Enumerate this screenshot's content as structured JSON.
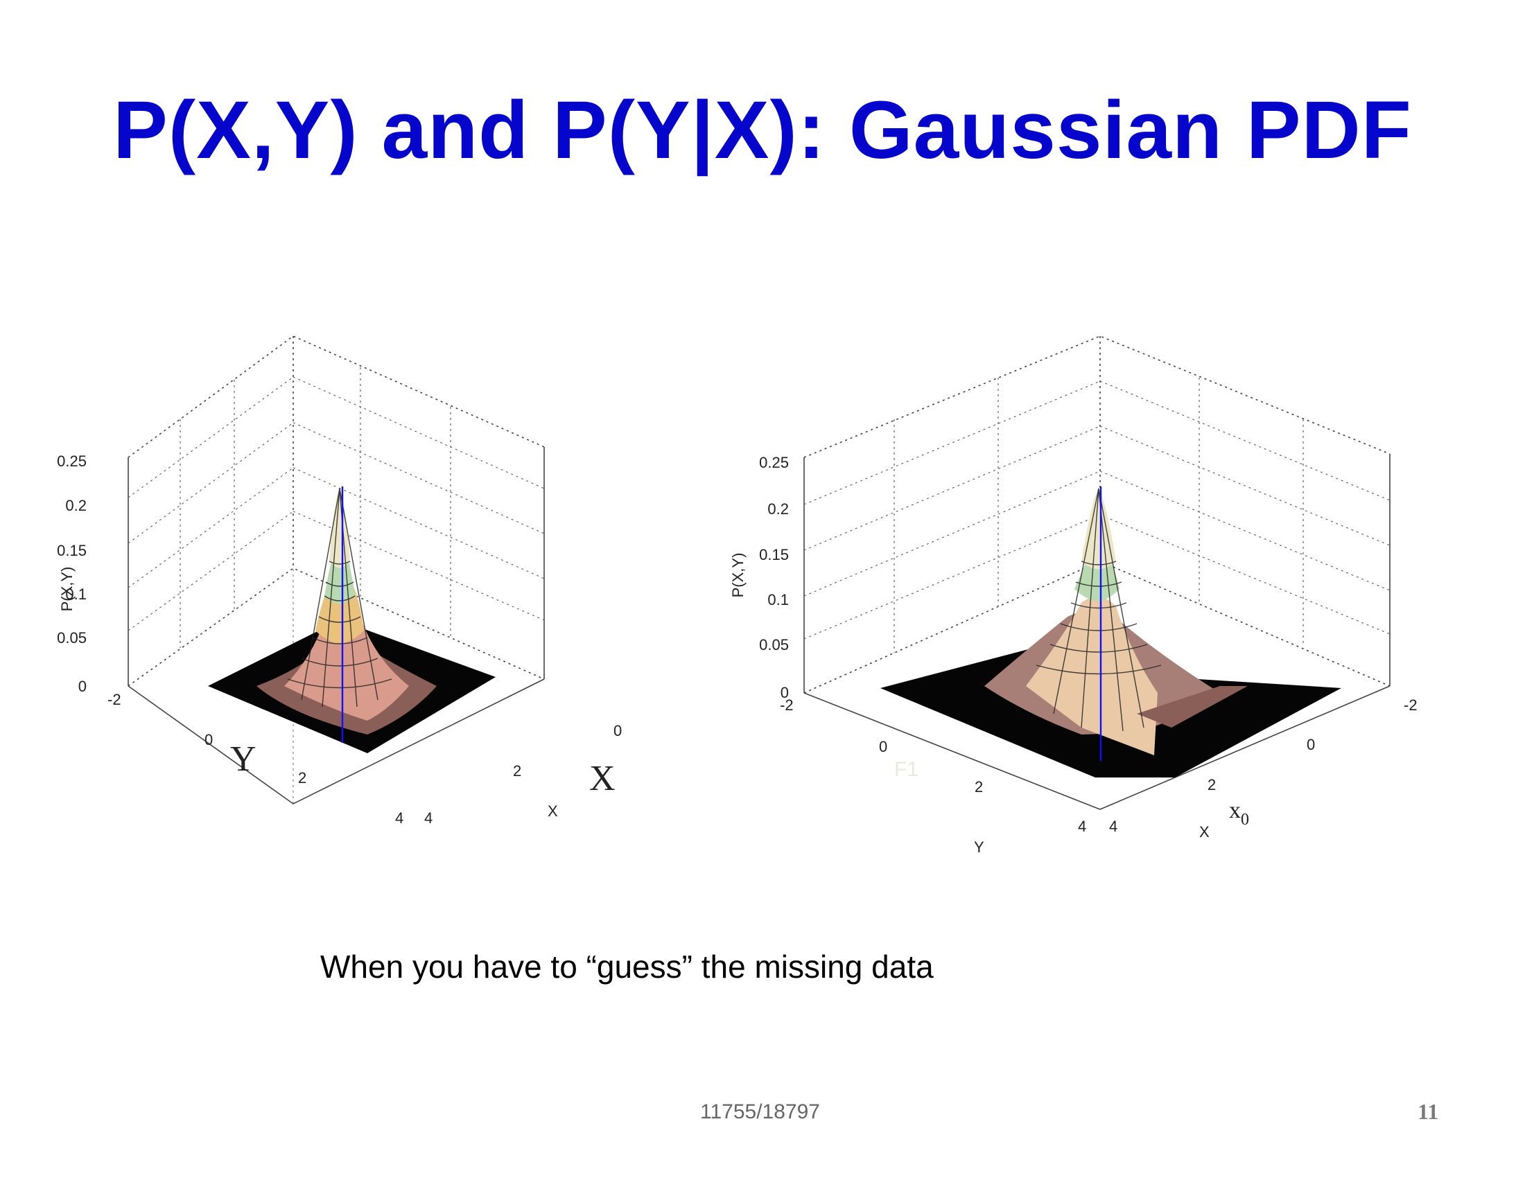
{
  "slide": {
    "title": "P(X,Y) and P(Y|X): Gaussian PDF",
    "caption": "When you have to “guess” the missing data",
    "footer": "11755/18797",
    "page_number": "11"
  },
  "chart_data": [
    {
      "type": "surface",
      "zlabel": "P(X,Y)",
      "xlabel": "X",
      "ylabel": "",
      "x_ticks": [
        "0",
        "2",
        "4"
      ],
      "y_ticks": [
        "-2",
        "0",
        "2",
        "4"
      ],
      "z_ticks": [
        "0",
        "0.05",
        "0.1",
        "0.15",
        "0.2",
        "0.25"
      ],
      "zlim": [
        0,
        0.25
      ],
      "peak": 0.22,
      "annotations": [
        "Y",
        "X"
      ],
      "grid": true
    },
    {
      "type": "surface",
      "zlabel": "P(X,Y)",
      "xlabel": "X",
      "ylabel": "Y",
      "x_ticks": [
        "-2",
        "0",
        "2",
        "4"
      ],
      "y_ticks": [
        "-2",
        "0",
        "2",
        "4"
      ],
      "z_ticks": [
        "0",
        "0.05",
        "0.1",
        "0.15",
        "0.2",
        "0.25"
      ],
      "zlim": [
        0,
        0.25
      ],
      "peak": 0.22,
      "annotations": [
        "F1",
        "x",
        "0"
      ],
      "grid": true
    }
  ],
  "colors": {
    "title": "#0505cc",
    "peak_line": "#1010ff"
  }
}
